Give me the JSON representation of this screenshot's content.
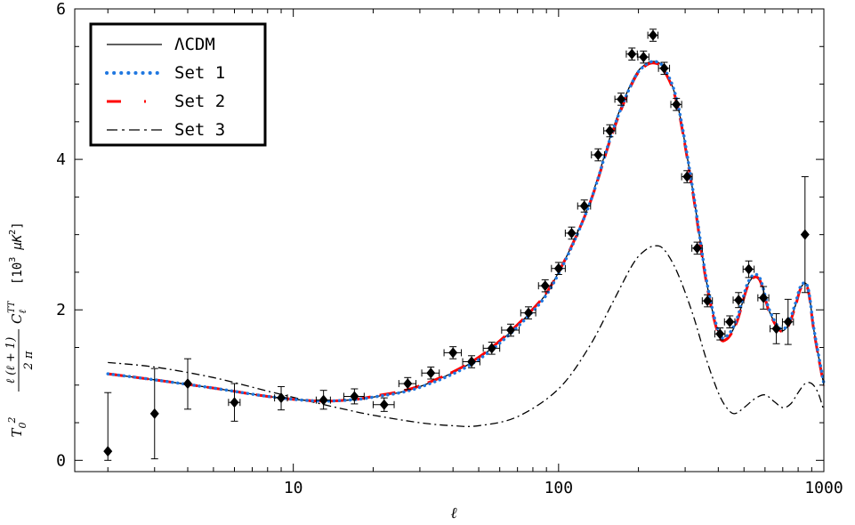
{
  "chart_data": {
    "type": "line",
    "xscale": "log",
    "xlim": [
      1.5,
      1000
    ],
    "ylim": [
      -0.15,
      6
    ],
    "xticks": [
      10,
      100,
      1000
    ],
    "xticklabels": [
      "10",
      "100",
      "1000"
    ],
    "yticks": [
      0,
      2,
      4,
      6
    ],
    "yticklabels": [
      "0",
      "2",
      "4",
      "6"
    ],
    "xlabel": "ℓ",
    "ylabel": "T₀² ℓ(ℓ+1)/(2π) C_ℓ^TT [10³ μK²]",
    "ylabel_parts": {
      "t0": "T",
      "t0_sub": "0",
      "t0_sup": "2",
      "frac_num": "ℓ (ℓ + 1)",
      "frac_den": "2 π",
      "c": "C",
      "c_sub": "ℓ",
      "c_sup": "TT",
      "units_pre": "[10",
      "units_exp": "3",
      "units_mu": "μK",
      "units_exp2": "2",
      "units_post": "]"
    },
    "grid": false,
    "legend_position": "top-left",
    "legend": [
      {
        "label": "ΛCDM",
        "style": "solid",
        "color": "#000000"
      },
      {
        "label": "Set 1",
        "style": "dotted",
        "color": "#1f77e0"
      },
      {
        "label": "Set 2",
        "style": "dashed",
        "color": "#ff0000"
      },
      {
        "label": "Set 3",
        "style": "dashdot",
        "color": "#000000"
      }
    ],
    "series": [
      {
        "name": "ΛCDM",
        "style": "solid",
        "color": "#000000",
        "x": [
          2,
          3,
          5,
          8,
          12,
          16,
          20,
          30,
          50,
          80,
          100,
          130,
          160,
          190,
          210,
          230,
          250,
          280,
          320,
          360,
          400,
          430,
          470,
          520,
          570,
          620,
          680,
          730,
          780,
          820,
          870,
          920,
          1000
        ],
        "y": [
          1.15,
          1.07,
          0.96,
          0.85,
          0.79,
          0.8,
          0.84,
          0.98,
          1.36,
          2.0,
          2.5,
          3.4,
          4.4,
          5.05,
          5.25,
          5.3,
          5.2,
          4.75,
          3.6,
          2.4,
          1.7,
          1.62,
          1.85,
          2.35,
          2.42,
          2.0,
          1.74,
          1.78,
          2.05,
          2.3,
          2.3,
          1.7,
          1.0
        ]
      },
      {
        "name": "Set 1",
        "style": "dotted",
        "color": "#1f77e0",
        "x": [
          2,
          3,
          5,
          8,
          12,
          16,
          20,
          30,
          50,
          80,
          100,
          130,
          160,
          190,
          210,
          230,
          250,
          280,
          320,
          360,
          400,
          430,
          470,
          520,
          570,
          620,
          680,
          730,
          780,
          820,
          870,
          920,
          1000
        ],
        "y": [
          1.15,
          1.07,
          0.96,
          0.85,
          0.79,
          0.8,
          0.84,
          0.97,
          1.34,
          1.98,
          2.48,
          3.38,
          4.38,
          5.03,
          5.24,
          5.3,
          5.21,
          4.77,
          3.62,
          2.42,
          1.72,
          1.65,
          1.88,
          2.38,
          2.44,
          2.02,
          1.76,
          1.8,
          2.08,
          2.32,
          2.3,
          1.72,
          1.02
        ]
      },
      {
        "name": "Set 2",
        "style": "dashed",
        "color": "#ff0000",
        "x": [
          2,
          3,
          5,
          8,
          12,
          16,
          20,
          30,
          50,
          80,
          100,
          130,
          160,
          190,
          210,
          230,
          250,
          280,
          320,
          360,
          400,
          430,
          470,
          520,
          570,
          620,
          680,
          730,
          780,
          820,
          870,
          920,
          1000
        ],
        "y": [
          1.15,
          1.07,
          0.96,
          0.85,
          0.79,
          0.8,
          0.85,
          0.99,
          1.37,
          2.01,
          2.5,
          3.38,
          4.36,
          5.02,
          5.23,
          5.28,
          5.18,
          4.73,
          3.58,
          2.38,
          1.68,
          1.61,
          1.84,
          2.34,
          2.41,
          1.99,
          1.73,
          1.77,
          2.04,
          2.29,
          2.28,
          1.69,
          0.99
        ]
      },
      {
        "name": "Set 3",
        "style": "dashdot",
        "color": "#000000",
        "x": [
          2,
          3,
          5,
          8,
          12,
          16,
          20,
          30,
          40,
          50,
          70,
          100,
          130,
          160,
          190,
          210,
          230,
          250,
          280,
          320,
          360,
          400,
          430,
          460,
          500,
          550,
          600,
          650,
          700,
          750,
          800,
          850,
          900,
          950,
          1000
        ],
        "y": [
          1.3,
          1.24,
          1.1,
          0.92,
          0.77,
          0.67,
          0.6,
          0.5,
          0.46,
          0.46,
          0.58,
          0.95,
          1.5,
          2.1,
          2.6,
          2.78,
          2.85,
          2.8,
          2.5,
          1.95,
          1.35,
          0.9,
          0.7,
          0.62,
          0.7,
          0.82,
          0.87,
          0.78,
          0.7,
          0.75,
          0.9,
          1.02,
          1.02,
          0.9,
          0.66
        ]
      }
    ],
    "data_points": {
      "name": "data",
      "marker": "diamond",
      "color": "#000000",
      "points": [
        {
          "x": 2,
          "y": 0.12,
          "yerr": [
            0.12,
            0.78
          ],
          "xerr": [
            0,
            0
          ]
        },
        {
          "x": 3,
          "y": 0.62,
          "yerr": [
            0.6,
            0.6
          ],
          "xerr": [
            0,
            0
          ]
        },
        {
          "x": 4,
          "y": 1.02,
          "yerr": [
            0.34,
            0.33
          ],
          "xerr": [
            0,
            0
          ]
        },
        {
          "x": 6,
          "y": 0.77,
          "yerr": [
            0.25,
            0.25
          ],
          "xerr": [
            0.3,
            0.3
          ]
        },
        {
          "x": 9,
          "y": 0.83,
          "yerr": [
            0.16,
            0.15
          ],
          "xerr": [
            0.5,
            0.5
          ]
        },
        {
          "x": 13,
          "y": 0.8,
          "yerr": [
            0.12,
            0.13
          ],
          "xerr": [
            0.8,
            0.8
          ]
        },
        {
          "x": 17,
          "y": 0.85,
          "yerr": [
            0.1,
            0.1
          ],
          "xerr": [
            1.5,
            1.5
          ]
        },
        {
          "x": 22,
          "y": 0.74,
          "yerr": [
            0.09,
            0.09
          ],
          "xerr": [
            2,
            2
          ]
        },
        {
          "x": 27,
          "y": 1.02,
          "yerr": [
            0.08,
            0.08
          ],
          "xerr": [
            2,
            2
          ]
        },
        {
          "x": 33,
          "y": 1.16,
          "yerr": [
            0.08,
            0.08
          ],
          "xerr": [
            2.5,
            2.5
          ]
        },
        {
          "x": 40,
          "y": 1.43,
          "yerr": [
            0.08,
            0.08
          ],
          "xerr": [
            3,
            3
          ]
        },
        {
          "x": 47,
          "y": 1.31,
          "yerr": [
            0.08,
            0.08
          ],
          "xerr": [
            3.5,
            3.5
          ]
        },
        {
          "x": 56,
          "y": 1.49,
          "yerr": [
            0.08,
            0.08
          ],
          "xerr": [
            4,
            4
          ]
        },
        {
          "x": 66,
          "y": 1.73,
          "yerr": [
            0.08,
            0.08
          ],
          "xerr": [
            5,
            5
          ]
        },
        {
          "x": 77,
          "y": 1.96,
          "yerr": [
            0.08,
            0.08
          ],
          "xerr": [
            5,
            5
          ]
        },
        {
          "x": 89,
          "y": 2.32,
          "yerr": [
            0.08,
            0.08
          ],
          "xerr": [
            5,
            5
          ]
        },
        {
          "x": 100,
          "y": 2.55,
          "yerr": [
            0.08,
            0.08
          ],
          "xerr": [
            6,
            6
          ]
        },
        {
          "x": 112,
          "y": 3.02,
          "yerr": [
            0.08,
            0.08
          ],
          "xerr": [
            6,
            6
          ]
        },
        {
          "x": 125,
          "y": 3.38,
          "yerr": [
            0.08,
            0.08
          ],
          "xerr": [
            7,
            7
          ]
        },
        {
          "x": 141,
          "y": 4.06,
          "yerr": [
            0.08,
            0.08
          ],
          "xerr": [
            8,
            8
          ]
        },
        {
          "x": 156,
          "y": 4.38,
          "yerr": [
            0.08,
            0.08
          ],
          "xerr": [
            8,
            8
          ]
        },
        {
          "x": 172,
          "y": 4.8,
          "yerr": [
            0.08,
            0.08
          ],
          "xerr": [
            9,
            9
          ]
        },
        {
          "x": 189,
          "y": 5.4,
          "yerr": [
            0.08,
            0.08
          ],
          "xerr": [
            9,
            9
          ]
        },
        {
          "x": 209,
          "y": 5.36,
          "yerr": [
            0.08,
            0.08
          ],
          "xerr": [
            10,
            10
          ]
        },
        {
          "x": 227,
          "y": 5.65,
          "yerr": [
            0.08,
            0.08
          ],
          "xerr": [
            10,
            10
          ]
        },
        {
          "x": 250,
          "y": 5.21,
          "yerr": [
            0.08,
            0.08
          ],
          "xerr": [
            12,
            12
          ]
        },
        {
          "x": 278,
          "y": 4.73,
          "yerr": [
            0.08,
            0.08
          ],
          "xerr": [
            13,
            13
          ]
        },
        {
          "x": 305,
          "y": 3.77,
          "yerr": [
            0.08,
            0.08
          ],
          "xerr": [
            14,
            14
          ]
        },
        {
          "x": 333,
          "y": 2.82,
          "yerr": [
            0.08,
            0.08
          ],
          "xerr": [
            15,
            15
          ]
        },
        {
          "x": 364,
          "y": 2.12,
          "yerr": [
            0.08,
            0.08
          ],
          "xerr": [
            16,
            16
          ]
        },
        {
          "x": 406,
          "y": 1.68,
          "yerr": [
            0.08,
            0.08
          ],
          "xerr": [
            18,
            18
          ]
        },
        {
          "x": 442,
          "y": 1.84,
          "yerr": [
            0.08,
            0.08
          ],
          "xerr": [
            20,
            20
          ]
        },
        {
          "x": 477,
          "y": 2.13,
          "yerr": [
            0.1,
            0.1
          ],
          "xerr": [
            22,
            22
          ]
        },
        {
          "x": 521,
          "y": 2.54,
          "yerr": [
            0.11,
            0.11
          ],
          "xerr": [
            25,
            25
          ]
        },
        {
          "x": 592,
          "y": 2.16,
          "yerr": [
            0.15,
            0.15
          ],
          "xerr": [
            28,
            28
          ]
        },
        {
          "x": 662,
          "y": 1.75,
          "yerr": [
            0.2,
            0.2
          ],
          "xerr": [
            35,
            35
          ]
        },
        {
          "x": 733,
          "y": 1.84,
          "yerr": [
            0.3,
            0.3
          ],
          "xerr": [
            35,
            35
          ]
        },
        {
          "x": 849,
          "y": 3.0,
          "yerr": [
            0.77,
            0.77
          ],
          "xerr": [
            0,
            0
          ]
        }
      ]
    }
  }
}
